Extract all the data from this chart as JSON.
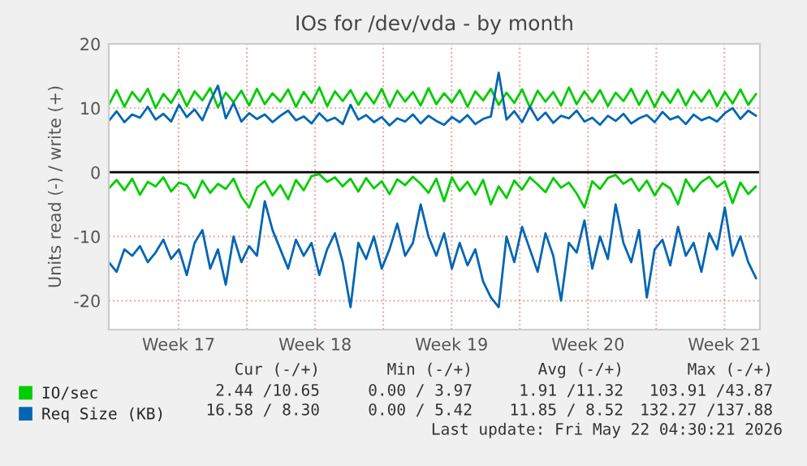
{
  "chart_data": {
    "type": "line",
    "title": "IOs for /dev/vda - by month",
    "ylabel": "Units read (-) / write (+)",
    "x": [
      "2026-04-19T22:00",
      "2026-04-20T07:36",
      "2026-04-20T17:12",
      "2026-04-21T02:48",
      "2026-04-21T12:24",
      "2026-04-21T22:00",
      "2026-04-22T07:36",
      "2026-04-22T17:12",
      "2026-04-23T02:48",
      "2026-04-23T12:24",
      "2026-04-23T22:00",
      "2026-04-24T07:36",
      "2026-04-24T17:12",
      "2026-04-25T02:48",
      "2026-04-25T12:24",
      "2026-04-25T22:00",
      "2026-04-26T07:36",
      "2026-04-26T17:12",
      "2026-04-27T02:48",
      "2026-04-27T12:24",
      "2026-04-27T22:00",
      "2026-04-28T07:36",
      "2026-04-28T17:12",
      "2026-04-29T02:48",
      "2026-04-29T12:24",
      "2026-04-29T22:00",
      "2026-04-30T07:36",
      "2026-04-30T17:12",
      "2026-05-01T02:48",
      "2026-05-01T12:24",
      "2026-05-01T22:00",
      "2026-05-02T07:36",
      "2026-05-02T17:12",
      "2026-05-03T02:48",
      "2026-05-03T12:24",
      "2026-05-03T22:00",
      "2026-05-04T07:36",
      "2026-05-04T17:12",
      "2026-05-05T02:48",
      "2026-05-05T12:24",
      "2026-05-05T22:00",
      "2026-05-06T07:36",
      "2026-05-06T17:12",
      "2026-05-07T02:48",
      "2026-05-07T12:24",
      "2026-05-07T22:00",
      "2026-05-08T07:36",
      "2026-05-08T17:12",
      "2026-05-09T02:48",
      "2026-05-09T12:24",
      "2026-05-09T22:00",
      "2026-05-10T07:36",
      "2026-05-10T17:12",
      "2026-05-11T02:48",
      "2026-05-11T12:24",
      "2026-05-11T22:00",
      "2026-05-12T07:36",
      "2026-05-12T17:12",
      "2026-05-13T02:48",
      "2026-05-13T12:24",
      "2026-05-13T22:00",
      "2026-05-14T07:36",
      "2026-05-14T17:12",
      "2026-05-15T02:48",
      "2026-05-15T12:24",
      "2026-05-15T22:00",
      "2026-05-16T07:36",
      "2026-05-16T17:12",
      "2026-05-17T02:48",
      "2026-05-17T12:24",
      "2026-05-17T22:00",
      "2026-05-18T07:36",
      "2026-05-18T17:12",
      "2026-05-19T02:48",
      "2026-05-19T12:24",
      "2026-05-19T22:00",
      "2026-05-20T07:36",
      "2026-05-20T17:12",
      "2026-05-21T02:48",
      "2026-05-21T12:24",
      "2026-05-21T22:00",
      "2026-05-22T07:36",
      "2026-05-22T17:12",
      "2026-05-23T02:48"
    ],
    "series": [
      {
        "name": "IO/sec",
        "color": "#00cc00",
        "values": [
          10.5,
          12.8,
          10.2,
          12.5,
          11.0,
          13.0,
          10.0,
          12.2,
          10.8,
          12.9,
          10.3,
          12.6,
          11.2,
          13.1,
          10.1,
          12.4,
          10.9,
          12.7,
          10.4,
          13.0,
          10.6,
          12.3,
          11.0,
          12.9,
          10.2,
          12.5,
          10.8,
          13.2,
          10.3,
          12.6,
          11.1,
          12.8,
          10.5,
          12.4,
          10.7,
          13.0,
          10.2,
          12.7,
          11.0,
          12.5,
          10.4,
          13.1,
          10.6,
          12.3,
          10.9,
          12.8,
          10.2,
          12.6,
          11.2,
          13.0,
          10.5,
          12.4,
          10.8,
          12.9,
          10.1,
          12.7,
          11.0,
          12.5,
          10.4,
          13.2,
          10.6,
          12.6,
          10.9,
          12.8,
          10.3,
          12.4,
          11.1,
          13.0,
          10.5,
          12.7,
          10.2,
          12.5,
          10.8,
          12.9,
          10.4,
          12.6,
          11.0,
          12.8,
          10.3,
          12.5,
          10.7,
          12.9,
          10.5,
          12.2
        ]
      },
      {
        "color": "#00cc00",
        "values": [
          -2.5,
          -1.2,
          -2.8,
          -1.0,
          -3.5,
          -1.5,
          -2.2,
          -0.8,
          -3.0,
          -1.6,
          -2.0,
          -4.0,
          -1.3,
          -3.2,
          -1.8,
          -2.6,
          -1.0,
          -3.8,
          -5.5,
          -2.4,
          -1.4,
          -3.6,
          -2.0,
          -4.2,
          -1.2,
          -2.8,
          -0.6,
          -0.3,
          -1.5,
          -0.8,
          -2.2,
          -1.0,
          -3.0,
          -0.9,
          -2.5,
          -1.4,
          -3.4,
          -1.1,
          -2.0,
          -0.7,
          -1.8,
          -3.2,
          -1.0,
          -4.5,
          -0.8,
          -2.9,
          -1.5,
          -3.5,
          -1.2,
          -5.0,
          -2.2,
          -4.0,
          -1.3,
          -2.7,
          -0.8,
          -1.9,
          -3.1,
          -0.9,
          -2.4,
          -1.6,
          -3.3,
          -5.5,
          -1.4,
          -2.6,
          -0.9,
          -0.4,
          -1.8,
          -1.0,
          -2.9,
          -1.3,
          -3.6,
          -1.7,
          -2.5,
          -5.0,
          -1.1,
          -3.0,
          -1.5,
          -0.7,
          -2.3,
          -1.4,
          -4.8,
          -1.6,
          -3.4,
          -2.2
        ]
      },
      {
        "name": "Req Size (KB)",
        "color": "#0066b3",
        "values": [
          8.0,
          9.5,
          7.8,
          9.0,
          8.5,
          10.2,
          8.2,
          9.1,
          7.9,
          10.5,
          8.6,
          9.8,
          8.1,
          11.0,
          13.5,
          8.4,
          10.8,
          7.9,
          9.2,
          8.3,
          9.0,
          7.8,
          8.8,
          9.6,
          8.1,
          8.7,
          7.6,
          9.2,
          8.0,
          8.5,
          7.5,
          10.5,
          8.2,
          8.9,
          7.8,
          8.6,
          7.3,
          8.4,
          7.9,
          9.0,
          7.6,
          8.8,
          8.0,
          7.4,
          8.6,
          7.8,
          8.9,
          7.5,
          8.3,
          8.7,
          15.5,
          8.2,
          9.5,
          7.8,
          10.2,
          8.1,
          9.3,
          7.7,
          8.8,
          8.4,
          9.6,
          7.9,
          8.5,
          7.4,
          8.8,
          8.0,
          9.1,
          7.6,
          8.4,
          8.9,
          7.8,
          9.4,
          8.2,
          8.7,
          7.5,
          9.0,
          8.1,
          8.6,
          7.9,
          9.2,
          10.0,
          8.3,
          9.6,
          8.8
        ]
      },
      {
        "color": "#0066b3",
        "values": [
          -14,
          -15.5,
          -12,
          -13,
          -11.5,
          -14,
          -12.5,
          -10.5,
          -13.5,
          -12,
          -16,
          -11,
          -9,
          -15,
          -12,
          -17.5,
          -10,
          -14,
          -11.5,
          -13,
          -4.5,
          -9,
          -12,
          -15,
          -10.5,
          -13,
          -11,
          -16,
          -12,
          -9.5,
          -14,
          -21,
          -11,
          -13.5,
          -10,
          -15,
          -12,
          -8,
          -13,
          -11,
          -5,
          -10,
          -13,
          -9.5,
          -15,
          -11,
          -14.5,
          -12,
          -17,
          -19.5,
          -21,
          -10,
          -14,
          -8.5,
          -12,
          -15.5,
          -9.5,
          -13,
          -20,
          -11,
          -12.5,
          -7.5,
          -15,
          -10,
          -13.5,
          -5,
          -11,
          -14,
          -9,
          -19.5,
          -12,
          -10.5,
          -14.5,
          -8.5,
          -13,
          -11,
          -15.5,
          -9.5,
          -12,
          -5.5,
          -13,
          -10,
          -14,
          -16.5
        ]
      }
    ],
    "xlim": [
      "2026-04-19T22:00",
      "2026-05-23T07:36"
    ],
    "xticks": [
      {
        "value": "2026-04-23T12:00",
        "label": "Week 17"
      },
      {
        "value": "2026-04-27",
        "label": null
      },
      {
        "value": "2026-04-30T12:00",
        "label": "Week 18"
      },
      {
        "value": "2026-05-04",
        "label": null
      },
      {
        "value": "2026-05-07T12:00",
        "label": "Week 19"
      },
      {
        "value": "2026-05-11",
        "label": null
      },
      {
        "value": "2026-05-14T12:00",
        "label": "Week 20"
      },
      {
        "value": "2026-05-18",
        "label": null
      },
      {
        "value": "2026-05-21T12:00",
        "label": "Week 21"
      }
    ],
    "ylim": [
      -24.5,
      20
    ],
    "yticks": [
      -20,
      -10,
      0,
      10,
      20
    ],
    "ref_lines": [
      {
        "axis": "y",
        "value": 0,
        "color": "#000000"
      }
    ],
    "grid": true,
    "legend": "bottom",
    "line_style": "solid",
    "marker": "none",
    "annotations": [
      "Cur (-/+)",
      "Min (-/+)",
      "Avg (-/+)",
      "Max (-/+)",
      "2.44 /10.65",
      "0.00 / 3.97",
      "1.91 /11.32",
      "103.91 /43.87",
      "16.58 / 8.30",
      "0.00 / 5.42",
      "11.85 / 8.52",
      "132.27 /137.88",
      "Last update: Fri May 22 04:30:21 2026"
    ]
  }
}
